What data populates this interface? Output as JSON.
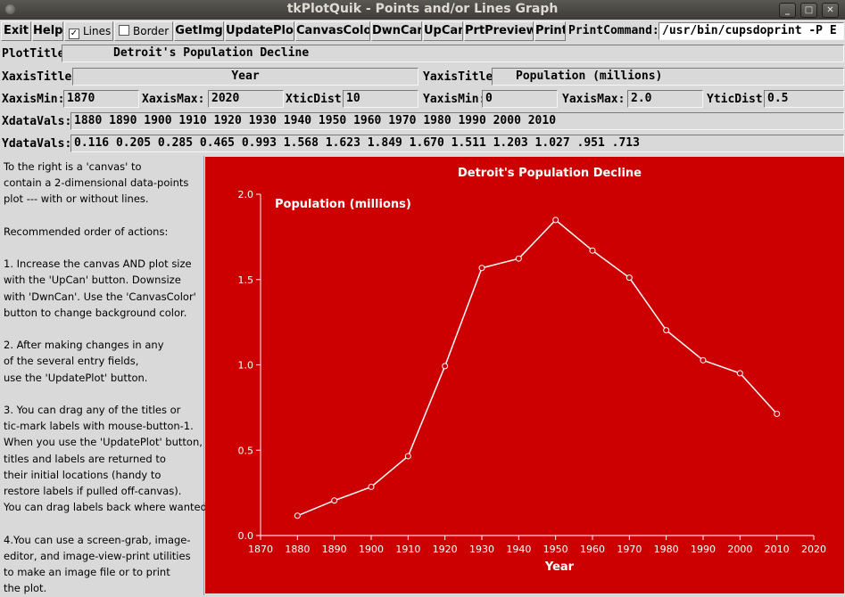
{
  "window": {
    "title": "tkPlotQuik - Points and/or Lines Graph"
  },
  "toolbar": {
    "exit": "Exit",
    "help": "Help",
    "lines": "Lines",
    "lines_checked": true,
    "border": "Border",
    "border_checked": false,
    "getimg": "GetImg",
    "updateplot": "UpdatePlot",
    "canvascolor": "CanvasColor",
    "dwncan": "DwnCan",
    "upcan": "UpCan",
    "prtpreview": "PrtPreview",
    "print": "Print",
    "printcommand_label": "PrintCommand:",
    "printcommand_value": "/usr/bin/cupsdoprint -P E"
  },
  "fields": {
    "plottitle_label": "PlotTitle:",
    "plottitle": "Detroit's Population Decline",
    "xaxistitle_label": "XaxisTitle:",
    "xaxistitle": "Year",
    "yaxistitle_label": "YaxisTitle:",
    "yaxistitle": "Population (millions)",
    "xaxismin_label": "XaxisMin:",
    "xaxismin": "1870",
    "xaxismax_label": "XaxisMax:",
    "xaxismax": "2020",
    "xticdist_label": "XticDist:",
    "xticdist": "10",
    "yaxismin_label": "YaxisMin:",
    "yaxismin": "0",
    "yaxismax_label": "YaxisMax:",
    "yaxismax": "2.0",
    "yticdist_label": "YticDist:",
    "yticdist": "0.5",
    "xdatavals_label": "XdataVals:",
    "xdatavals": "1880 1890 1900 1910 1920 1930 1940 1950 1960 1970 1980 1990 2000 2010",
    "ydatavals_label": "YdataVals:",
    "ydatavals": "0.116 0.205 0.285 0.465 0.993 1.568 1.623 1.849 1.670 1.511 1.203 1.027 .951 .713"
  },
  "help_text": "To the right is a 'canvas' to\ncontain a 2-dimensional data-points\nplot --- with or without lines.\n\nRecommended order of actions:\n\n1. Increase the canvas AND plot size\nwith the 'UpCan' button. Downsize\nwith 'DwnCan'. Use the 'CanvasColor'\nbutton to change background color.\n\n2. After making changes in any\nof the several entry fields,\nuse the 'UpdatePlot' button.\n\n3. You can drag any of the titles or\ntic-mark labels with mouse-button-1.\nWhen you use the 'UpdatePlot' button,\ntitles and labels are returned to\ntheir initial locations (handy to\nrestore labels if pulled off-canvas).\nYou can drag labels back where wanted.\n\n4.You can use a screen-grab, image-\neditor, and image-view-print utilities\nto make an image file or to print\nthe plot.",
  "colors": {
    "canvas": "#cc0000",
    "plot": "#ffffff"
  },
  "chart_data": {
    "type": "line",
    "title": "Detroit's Population Decline",
    "xlabel": "Year",
    "ylabel": "Population (millions)",
    "xlim": [
      1870,
      2020
    ],
    "ylim": [
      0,
      2.0
    ],
    "x_ticks": [
      "1870",
      "1880",
      "1890",
      "1900",
      "1910",
      "1920",
      "1930",
      "1940",
      "1950",
      "1960",
      "1970",
      "1980",
      "1990",
      "2000",
      "2010",
      "2020"
    ],
    "y_ticks": [
      "0.0",
      "0.5",
      "1.0",
      "1.5",
      "2.0"
    ],
    "x": [
      1880,
      1890,
      1900,
      1910,
      1920,
      1930,
      1940,
      1950,
      1960,
      1970,
      1980,
      1990,
      2000,
      2010
    ],
    "y": [
      0.116,
      0.205,
      0.285,
      0.465,
      0.993,
      1.568,
      1.623,
      1.849,
      1.67,
      1.511,
      1.203,
      1.027,
      0.951,
      0.713
    ],
    "markers": true,
    "grid": false
  }
}
